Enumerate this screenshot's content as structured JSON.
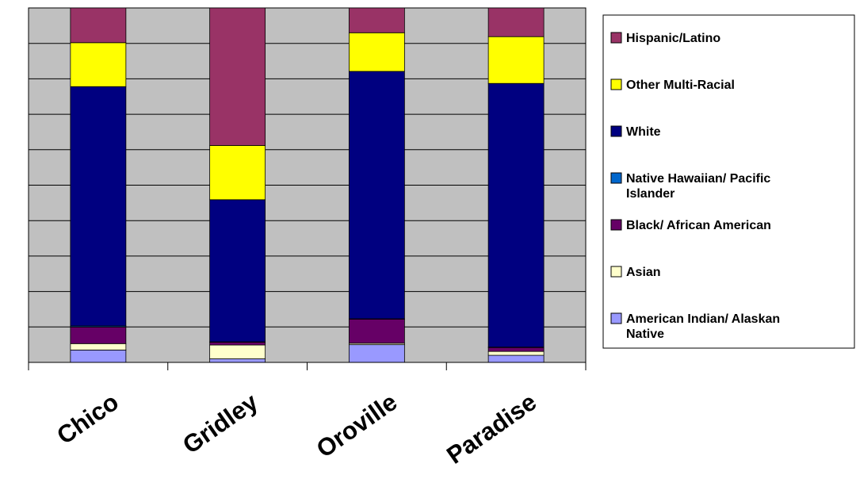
{
  "chart_data": {
    "type": "bar",
    "stacked": true,
    "normalized_percent": true,
    "categories": [
      "Chico",
      "Gridley",
      "Oroville",
      "Paradise"
    ],
    "ylim": [
      0,
      100
    ],
    "grid": true,
    "legend_position": "right",
    "plot_background": "#c0c0c0",
    "series": [
      {
        "name": "American Indian/ Alaskan Native",
        "color": "#9999ff",
        "values": [
          3.5,
          1.0,
          5.0,
          2.0
        ]
      },
      {
        "name": "Asian",
        "color": "#ffffcc",
        "values": [
          1.8,
          3.9,
          0.4,
          1.1
        ]
      },
      {
        "name": "Black/ African American",
        "color": "#660066",
        "values": [
          4.7,
          0.8,
          6.8,
          1.1
        ]
      },
      {
        "name": "Native Hawaiian/ Pacific Islander",
        "color": "#0066cc",
        "values": [
          0.3,
          0.1,
          0.1,
          0.1
        ]
      },
      {
        "name": "White",
        "color": "#000080",
        "values": [
          67.5,
          40.1,
          69.8,
          74.4
        ]
      },
      {
        "name": "Other Multi-Racial",
        "color": "#ffff00",
        "values": [
          12.4,
          15.3,
          10.9,
          13.2
        ]
      },
      {
        "name": "Hispanic/Latino",
        "color": "#993366",
        "values": [
          9.8,
          38.8,
          7.0,
          8.1
        ]
      }
    ]
  }
}
